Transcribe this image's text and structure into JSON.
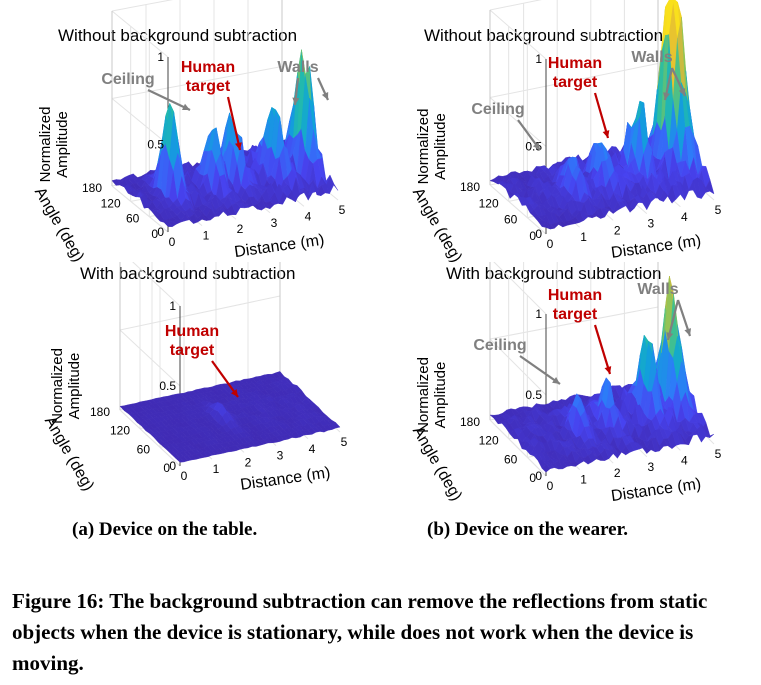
{
  "panels": [
    {
      "title": "Without background subtraction",
      "zlabel": "Normalized\nAmplitude",
      "ylabel": "Angle (deg)",
      "xlabel": "Distance (m)",
      "zticks": [
        "1",
        "0.5",
        "0"
      ],
      "yticks": [
        "180",
        "120",
        "60",
        "0"
      ],
      "xticks": [
        "0",
        "1",
        "2",
        "3",
        "4",
        "5"
      ],
      "annotations": [
        {
          "text": "Ceiling",
          "color": "#808080"
        },
        {
          "text": "Human\ntarget",
          "color": "#c00000"
        },
        {
          "text": "Walls",
          "color": "#808080"
        }
      ]
    },
    {
      "title": "Without background subtraction",
      "zlabel": "Normalized\nAmplitude",
      "ylabel": "Angle (deg)",
      "xlabel": "Distance (m)",
      "zticks": [
        "1",
        "0.5",
        "0"
      ],
      "yticks": [
        "180",
        "120",
        "60",
        "0"
      ],
      "xticks": [
        "0",
        "1",
        "2",
        "3",
        "4",
        "5"
      ],
      "annotations": [
        {
          "text": "Ceiling",
          "color": "#808080"
        },
        {
          "text": "Human\ntarget",
          "color": "#c00000"
        },
        {
          "text": "Walls",
          "color": "#808080"
        }
      ]
    },
    {
      "title": "With background subtraction",
      "zlabel": "Normalized\nAmplitude",
      "ylabel": "Angle (deg)",
      "xlabel": "Distance (m)",
      "zticks": [
        "1",
        "0.5",
        "0"
      ],
      "yticks": [
        "180",
        "120",
        "60",
        "0"
      ],
      "xticks": [
        "0",
        "1",
        "2",
        "3",
        "4",
        "5"
      ],
      "annotations": [
        {
          "text": "Human\ntarget",
          "color": "#c00000"
        }
      ]
    },
    {
      "title": "With background subtraction",
      "zlabel": "Normalized\nAmplitude",
      "ylabel": "Angle (deg)",
      "xlabel": "Distance (m)",
      "zticks": [
        "1",
        "0.5",
        "0"
      ],
      "yticks": [
        "180",
        "120",
        "60",
        "0"
      ],
      "xticks": [
        "0",
        "1",
        "2",
        "3",
        "4",
        "5"
      ],
      "annotations": [
        {
          "text": "Ceiling",
          "color": "#808080"
        },
        {
          "text": "Human\ntarget",
          "color": "#c00000"
        },
        {
          "text": "Walls",
          "color": "#808080"
        }
      ]
    }
  ],
  "subcaptions": [
    "(a) Device on the table.",
    "(b) Device on the wearer."
  ],
  "caption": "Figure 16: The background subtraction can remove the reflections from static objects when the device is stationary, while does not work when the device is moving.",
  "colormap": [
    "#3e26a8",
    "#4743f0",
    "#2f79fa",
    "#0fa3d8",
    "#25bca7",
    "#82c65d",
    "#e1b737",
    "#f9e01c"
  ]
}
